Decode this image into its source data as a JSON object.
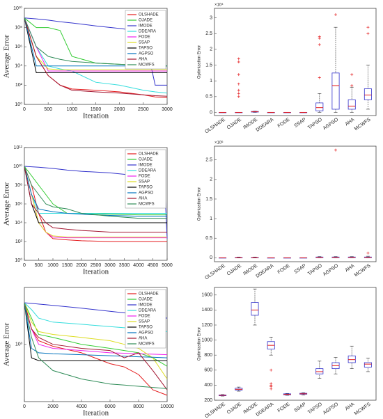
{
  "chart_data": [
    {
      "type": "line",
      "y_label": "Average Error",
      "x_label": "Iteration",
      "log_y": true,
      "legend": "upper right",
      "x": [
        0,
        250,
        500,
        750,
        1000,
        1500,
        2000,
        2500,
        2750,
        3000
      ],
      "xlim": [
        0,
        3000
      ],
      "xticks": [
        0,
        500,
        1000,
        1500,
        2000,
        2500,
        3000
      ],
      "ylim": [
        1,
        10000000000
      ],
      "yticks": [
        {
          "value": 1,
          "label": "10⁰"
        },
        {
          "value": 100,
          "label": "10²"
        },
        {
          "value": 10000,
          "label": "10⁴"
        },
        {
          "value": 1000000,
          "label": "10⁶"
        },
        {
          "value": 100000000,
          "label": "10⁸"
        },
        {
          "value": 10000000000,
          "label": "10¹⁰"
        }
      ],
      "series": [
        {
          "name": "OLSHADE",
          "color": "#e41a1c",
          "values": [
            1000000000,
            100000,
            1000,
            100,
            40,
            30,
            20,
            10,
            6,
            5
          ]
        },
        {
          "name": "OJADE",
          "color": "#33cc33",
          "values": [
            1000000000,
            100000000,
            100000000,
            50000000,
            100000,
            20000,
            15000,
            12000,
            10000,
            10000
          ]
        },
        {
          "name": "IMODE",
          "color": "#3333cc",
          "values": [
            1000000000,
            800000000,
            600000000,
            400000000,
            300000000,
            150000000,
            80000000,
            40000000,
            100,
            100
          ]
        },
        {
          "name": "DDEARA",
          "color": "#33dddd",
          "values": [
            1000000000,
            1000000,
            10000,
            5000,
            3000,
            200,
            100,
            30,
            20,
            15
          ]
        },
        {
          "name": "FODE",
          "color": "#ee22ee",
          "values": [
            1000000000,
            1000000,
            3000,
            3000,
            3000,
            3000,
            3000,
            3000,
            3000,
            3000
          ]
        },
        {
          "name": "SSAP",
          "color": "#dddd22",
          "values": [
            1000000000,
            100000,
            5000,
            4000,
            4000,
            4000,
            4000,
            4000,
            4000,
            4000
          ]
        },
        {
          "name": "TAPSO",
          "color": "#000000",
          "values": [
            1000000000,
            2000,
            2000,
            2000,
            2000,
            2000,
            2000,
            2000,
            2000,
            2000
          ]
        },
        {
          "name": "AGPSO",
          "color": "#0072bd",
          "values": [
            1000000000,
            10000,
            10000,
            10000,
            10000,
            10000,
            10000,
            10000,
            10000,
            10000
          ]
        },
        {
          "name": "AHA",
          "color": "#a2142f",
          "values": [
            1000000000,
            100000,
            1000,
            100,
            30,
            20,
            15,
            10,
            8,
            7
          ]
        },
        {
          "name": "MCWFS",
          "color": "#2e8b57",
          "values": [
            1000000000,
            1000000,
            100000,
            50000,
            30000,
            20000,
            15000,
            12000,
            10000,
            10000
          ]
        }
      ]
    },
    {
      "type": "box",
      "y_label": "Optimization Error",
      "y_multiplier": "×10⁴",
      "categories": [
        "OLSHADE",
        "OJADE",
        "IMODE",
        "DDEARA",
        "FODE",
        "SSAP",
        "TAPSO",
        "AGPSO",
        "AHA",
        "MCWFS"
      ],
      "ylim": [
        -0.1,
        3.3
      ],
      "yticks": [
        0,
        0.5,
        1,
        1.5,
        2,
        2.5,
        3
      ],
      "boxes": [
        {
          "min": 0,
          "q1": 0,
          "median": 0,
          "q3": 0,
          "max": 0,
          "outliers": []
        },
        {
          "min": 0,
          "q1": 0,
          "median": 0,
          "q3": 0,
          "max": 0,
          "outliers": [
            0.5,
            0.6,
            0.7,
            0.9,
            1.2,
            1.6,
            1.7
          ]
        },
        {
          "min": 0,
          "q1": 0.01,
          "median": 0.02,
          "q3": 0.03,
          "max": 0.04,
          "outliers": []
        },
        {
          "min": 0,
          "q1": 0,
          "median": 0,
          "q3": 0,
          "max": 0,
          "outliers": []
        },
        {
          "min": 0,
          "q1": 0,
          "median": 0,
          "q3": 0,
          "max": 0,
          "outliers": []
        },
        {
          "min": 0,
          "q1": 0,
          "median": 0,
          "q3": 0,
          "max": 0,
          "outliers": []
        },
        {
          "min": 0,
          "q1": 0.05,
          "median": 0.15,
          "q3": 0.3,
          "max": 0.6,
          "outliers": [
            1.1,
            2.15,
            2.35,
            2.4
          ]
        },
        {
          "min": 0,
          "q1": 0.1,
          "median": 0.85,
          "q3": 1.25,
          "max": 2.7,
          "outliers": [
            3.1
          ]
        },
        {
          "min": 0,
          "q1": 0.1,
          "median": 0.2,
          "q3": 0.4,
          "max": 0.8,
          "outliers": [
            0.85,
            1.2
          ]
        },
        {
          "min": 0.1,
          "q1": 0.4,
          "median": 0.55,
          "q3": 0.75,
          "max": 1.5,
          "outliers": [
            2.5,
            2.7
          ]
        }
      ]
    },
    {
      "type": "line",
      "y_label": "Average Error",
      "x_label": "Iteration",
      "log_y": true,
      "legend": "upper right",
      "x": [
        0,
        250,
        500,
        750,
        1000,
        1500,
        2000,
        3000,
        4000,
        4900,
        5000
      ],
      "xlim": [
        0,
        5000
      ],
      "xticks": [
        0,
        500,
        1000,
        1500,
        2000,
        2500,
        3000,
        3500,
        4000,
        4500,
        5000
      ],
      "ylim": [
        1,
        1000000000000
      ],
      "yticks": [
        {
          "value": 1,
          "label": "10⁰"
        },
        {
          "value": 100,
          "label": "10²"
        },
        {
          "value": 10000,
          "label": "10⁴"
        },
        {
          "value": 1000000,
          "label": "10⁶"
        },
        {
          "value": 100000000,
          "label": "10⁸"
        },
        {
          "value": 10000000000,
          "label": "10¹⁰"
        },
        {
          "value": 1000000000000,
          "label": "10¹²"
        }
      ],
      "series": [
        {
          "name": "OLSHADE",
          "color": "#e41a1c",
          "values": [
            10000000000,
            100000000,
            100000,
            1000,
            200,
            150,
            120,
            100,
            100,
            100,
            100
          ]
        },
        {
          "name": "OJADE",
          "color": "#33cc33",
          "values": [
            10000000000,
            1000000000,
            100000000,
            10000000,
            1000000,
            100000,
            100000,
            80000,
            70000,
            70000,
            70000
          ]
        },
        {
          "name": "IMODE",
          "color": "#3333cc",
          "values": [
            10000000000,
            9000000000,
            8000000000,
            7000000000,
            6000000000,
            4000000000,
            3000000000,
            2000000000,
            1000000000,
            800000000,
            200
          ]
        },
        {
          "name": "DDEARA",
          "color": "#33dddd",
          "values": [
            10000000000,
            10000000,
            100000,
            100000,
            100000,
            100000,
            100000,
            100000,
            100000,
            100000,
            100000
          ]
        },
        {
          "name": "FODE",
          "color": "#ee22ee",
          "values": [
            10000000000,
            10000000,
            10000,
            1000,
            300,
            250,
            250,
            250,
            250,
            250,
            250
          ]
        },
        {
          "name": "SSAP",
          "color": "#dddd22",
          "values": [
            10000000000,
            10000000,
            10000,
            1000,
            400,
            300,
            300,
            300,
            300,
            300,
            300
          ]
        },
        {
          "name": "TAPSO",
          "color": "#000000",
          "values": [
            10000000000,
            1000000,
            10000,
            10000,
            10000,
            10000,
            10000,
            10000,
            10000,
            10000,
            10000
          ]
        },
        {
          "name": "AGPSO",
          "color": "#0072bd",
          "values": [
            10000000000,
            10000000,
            300000,
            200000,
            150000,
            100000,
            80000,
            60000,
            50000,
            50000,
            50000
          ]
        },
        {
          "name": "AHA",
          "color": "#a2142f",
          "values": [
            10000000000,
            1000000,
            100000,
            10000,
            3000,
            2000,
            1500,
            1000,
            1000,
            1000,
            1000
          ]
        },
        {
          "name": "MCWFS",
          "color": "#2e8b57",
          "values": [
            10000000000,
            100000000,
            10000000,
            1000000,
            500000,
            300000,
            100000,
            50000,
            30000,
            30000,
            30000
          ]
        }
      ]
    },
    {
      "type": "box",
      "y_label": "Optimization Error",
      "y_multiplier": "×10⁶",
      "categories": [
        "OLSHADE",
        "OJADE",
        "IMODE",
        "DDEARA",
        "FODE",
        "SSAP",
        "TAPSO",
        "AGPSO",
        "AHA",
        "MCWFS"
      ],
      "ylim": [
        -0.1,
        2.85
      ],
      "yticks": [
        0,
        0.5,
        1,
        1.5,
        2,
        2.5
      ],
      "boxes": [
        {
          "min": 0,
          "q1": 0,
          "median": 0,
          "q3": 0,
          "max": 0,
          "outliers": []
        },
        {
          "min": 0,
          "q1": 0,
          "median": 0.005,
          "q3": 0.01,
          "max": 0.02,
          "outliers": []
        },
        {
          "min": 0,
          "q1": 0,
          "median": 0.005,
          "q3": 0.01,
          "max": 0.02,
          "outliers": []
        },
        {
          "min": 0,
          "q1": 0,
          "median": 0,
          "q3": 0,
          "max": 0,
          "outliers": []
        },
        {
          "min": 0,
          "q1": 0,
          "median": 0,
          "q3": 0,
          "max": 0,
          "outliers": []
        },
        {
          "min": 0,
          "q1": 0,
          "median": 0,
          "q3": 0,
          "max": 0,
          "outliers": []
        },
        {
          "min": 0,
          "q1": 0.005,
          "median": 0.01,
          "q3": 0.02,
          "max": 0.03,
          "outliers": []
        },
        {
          "min": 0,
          "q1": 0.005,
          "median": 0.01,
          "q3": 0.02,
          "max": 0.03,
          "outliers": [
            2.75
          ]
        },
        {
          "min": 0,
          "q1": 0.005,
          "median": 0.01,
          "q3": 0.02,
          "max": 0.03,
          "outliers": []
        },
        {
          "min": 0,
          "q1": 0.005,
          "median": 0.01,
          "q3": 0.02,
          "max": 0.04,
          "outliers": [
            0.12
          ]
        }
      ]
    },
    {
      "type": "line",
      "y_label": "Average Error",
      "x_label": "Iteration",
      "log_y": true,
      "legend": "upper right",
      "x": [
        0,
        500,
        1000,
        2000,
        4000,
        6000,
        7000,
        8000,
        9000,
        10000
      ],
      "xlim": [
        0,
        10000
      ],
      "xticks": [
        0,
        2000,
        4000,
        6000,
        8000,
        10000
      ],
      "ylim": [
        220,
        4500
      ],
      "yticks": [
        {
          "value": 1000,
          "label": "10³"
        }
      ],
      "series": [
        {
          "name": "OLSHADE",
          "color": "#e41a1c",
          "values": [
            3000,
            1500,
            1100,
            950,
            800,
            600,
            550,
            450,
            300,
            260
          ]
        },
        {
          "name": "OJADE",
          "color": "#33cc33",
          "values": [
            3000,
            2000,
            1300,
            1200,
            1000,
            900,
            850,
            800,
            700,
            560
          ]
        },
        {
          "name": "IMODE",
          "color": "#3333cc",
          "values": [
            3000,
            2950,
            2900,
            2800,
            2600,
            2400,
            2300,
            2200,
            2100,
            2000
          ]
        },
        {
          "name": "DDEARA",
          "color": "#33dddd",
          "values": [
            3000,
            2500,
            2000,
            1800,
            1700,
            1600,
            1550,
            1500,
            1450,
            1400
          ]
        },
        {
          "name": "FODE",
          "color": "#ee22ee",
          "values": [
            3000,
            1500,
            1000,
            900,
            850,
            800,
            790,
            780,
            770,
            760
          ]
        },
        {
          "name": "SSAP",
          "color": "#dddd22",
          "values": [
            3000,
            1800,
            1400,
            1300,
            1200,
            1100,
            1000,
            900,
            700,
            400
          ]
        },
        {
          "name": "TAPSO",
          "color": "#000000",
          "values": [
            3000,
            700,
            650,
            650,
            650,
            650,
            650,
            650,
            650,
            650
          ]
        },
        {
          "name": "AGPSO",
          "color": "#0072bd",
          "values": [
            3000,
            900,
            800,
            780,
            760,
            740,
            730,
            720,
            710,
            700
          ]
        },
        {
          "name": "AHA",
          "color": "#a2142f",
          "values": [
            3000,
            1500,
            1200,
            1000,
            900,
            850,
            700,
            800,
            500,
            300
          ]
        },
        {
          "name": "MCWFS",
          "color": "#2e8b57",
          "values": [
            3000,
            1200,
            700,
            500,
            400,
            350,
            340,
            330,
            320,
            310
          ]
        }
      ]
    },
    {
      "type": "box",
      "y_label": "Optimization Error",
      "categories": [
        "OLSHADE",
        "OJADE",
        "IMODE",
        "DDEARA",
        "FODE",
        "SSAP",
        "TAPSO",
        "AGPSO",
        "AHA",
        "MCWFS"
      ],
      "ylim": [
        200,
        1700
      ],
      "yticks": [
        200,
        400,
        600,
        800,
        1000,
        1200,
        1400,
        1600
      ],
      "boxes": [
        {
          "min": 255,
          "q1": 260,
          "median": 265,
          "q3": 270,
          "max": 275,
          "outliers": []
        },
        {
          "min": 320,
          "q1": 335,
          "median": 345,
          "q3": 360,
          "max": 375,
          "outliers": []
        },
        {
          "min": 1200,
          "q1": 1330,
          "median": 1400,
          "q3": 1500,
          "max": 1680,
          "outliers": []
        },
        {
          "min": 800,
          "q1": 880,
          "median": 930,
          "q3": 980,
          "max": 1040,
          "outliers": [
            350,
            380,
            400,
            420,
            600
          ]
        },
        {
          "min": 265,
          "q1": 272,
          "median": 278,
          "q3": 285,
          "max": 290,
          "outliers": []
        },
        {
          "min": 270,
          "q1": 280,
          "median": 285,
          "q3": 292,
          "max": 300,
          "outliers": []
        },
        {
          "min": 490,
          "q1": 550,
          "median": 580,
          "q3": 620,
          "max": 720,
          "outliers": []
        },
        {
          "min": 550,
          "q1": 620,
          "median": 660,
          "q3": 700,
          "max": 770,
          "outliers": []
        },
        {
          "min": 620,
          "q1": 700,
          "median": 740,
          "q3": 790,
          "max": 920,
          "outliers": []
        },
        {
          "min": 580,
          "q1": 640,
          "median": 680,
          "q3": 700,
          "max": 760,
          "outliers": []
        }
      ]
    }
  ]
}
